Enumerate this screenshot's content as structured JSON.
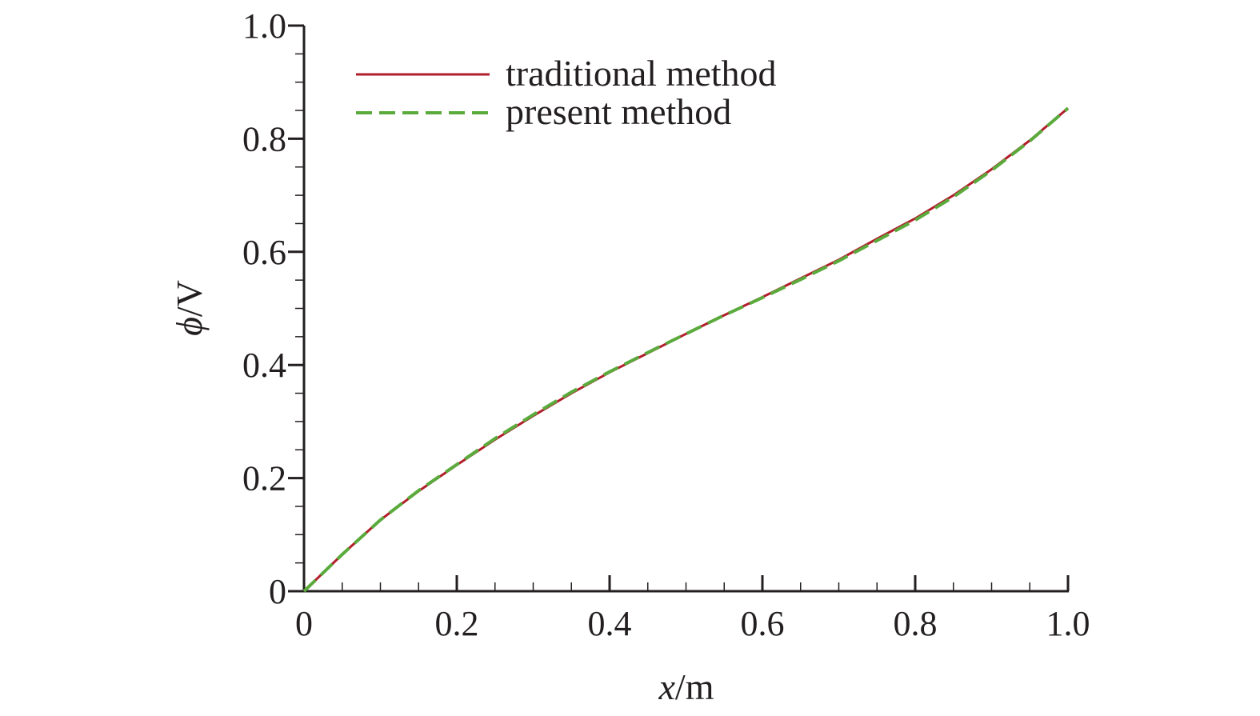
{
  "chart_data": {
    "type": "line",
    "title": "",
    "xlabel": {
      "symbol": "x",
      "unit": "/m"
    },
    "ylabel": {
      "symbol": "ϕ",
      "unit": "/V"
    },
    "xlim": [
      0,
      1.0
    ],
    "ylim": [
      0,
      1.0
    ],
    "x_ticks": [
      0,
      0.2,
      0.4,
      0.6,
      0.8,
      1.0
    ],
    "y_ticks": [
      0,
      0.2,
      0.4,
      0.6,
      0.8,
      1.0
    ],
    "x_tick_labels": [
      "0",
      "0.2",
      "0.4",
      "0.6",
      "0.8",
      "1.0"
    ],
    "y_tick_labels": [
      "0",
      "0.2",
      "0.4",
      "0.6",
      "0.8",
      "1.0"
    ],
    "grid": false,
    "legend": {
      "position": "top-left"
    },
    "x": [
      0,
      0.05,
      0.1,
      0.15,
      0.2,
      0.25,
      0.3,
      0.35,
      0.4,
      0.45,
      0.5,
      0.55,
      0.6,
      0.65,
      0.7,
      0.75,
      0.8,
      0.85,
      0.9,
      0.95,
      1.0
    ],
    "series": [
      {
        "name": "traditional method",
        "color": "#b11f2b",
        "style": "solid",
        "values": [
          0,
          0.065,
          0.126,
          0.177,
          0.223,
          0.268,
          0.31,
          0.35,
          0.387,
          0.421,
          0.455,
          0.488,
          0.52,
          0.553,
          0.586,
          0.623,
          0.659,
          0.7,
          0.746,
          0.797,
          0.854
        ]
      },
      {
        "name": "present method",
        "color": "#5aaa3c",
        "style": "dashed",
        "values": [
          0,
          0.065,
          0.126,
          0.178,
          0.224,
          0.27,
          0.312,
          0.352,
          0.388,
          0.422,
          0.455,
          0.488,
          0.519,
          0.551,
          0.584,
          0.62,
          0.656,
          0.697,
          0.744,
          0.796,
          0.854
        ]
      }
    ]
  }
}
